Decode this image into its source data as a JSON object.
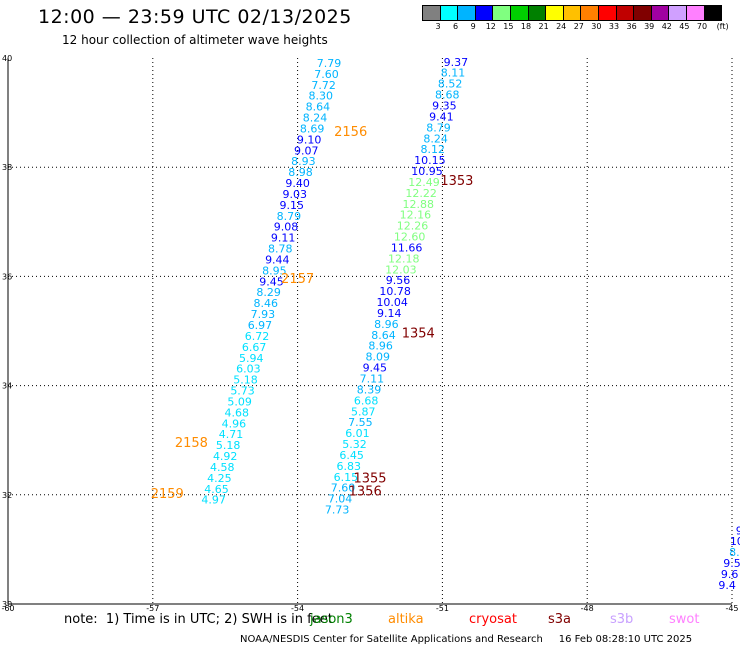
{
  "header": {
    "title": "12:00 — 23:59 UTC 02/13/2025",
    "subtitle": "12 hour collection of altimeter wave heights"
  },
  "legend": {
    "colors": [
      "#808080",
      "#00ffff",
      "#00b4ff",
      "#0000ff",
      "#80ff80",
      "#00d000",
      "#008000",
      "#ffff00",
      "#ffc000",
      "#ff8000",
      "#ff0000",
      "#c00000",
      "#800000",
      "#a000a0",
      "#d0a0ff",
      "#ff80ff",
      "#000000"
    ],
    "labels": [
      "3",
      "6",
      "9",
      "12",
      "15",
      "18",
      "21",
      "24",
      "27",
      "30",
      "33",
      "36",
      "39",
      "42",
      "45",
      "70",
      "(ft)"
    ]
  },
  "axes": {
    "x_ticks": [
      "-60",
      "-57",
      "-54",
      "-51",
      "-48",
      "-45"
    ],
    "y_ticks": [
      "40",
      "38",
      "36",
      "34",
      "32",
      "30"
    ]
  },
  "note": {
    "text": "note:  1) Time is in UTC; 2) SWH is in feet",
    "satellites": [
      {
        "name": "jason3",
        "color": "#008000"
      },
      {
        "name": "altika",
        "color": "#ff8c00"
      },
      {
        "name": "cryosat",
        "color": "#ff0000"
      },
      {
        "name": "s3a",
        "color": "#800000"
      },
      {
        "name": "s3b",
        "color": "#c8a0ff"
      },
      {
        "name": "swot",
        "color": "#ff80ff"
      }
    ]
  },
  "footer": "NOAA/NESDIS Center for Satellite Applications and Research     16 Feb 08:28:10 UTC 2025",
  "chart_data": {
    "type": "scatter",
    "xlim": [
      -60,
      -45
    ],
    "ylim": [
      30,
      40
    ],
    "tracks": [
      {
        "name": "track1",
        "points": [
          {
            "x": -53.35,
            "y": 39.91,
            "v": "7.79",
            "c": "#00b4ff"
          },
          {
            "x": -53.4,
            "y": 39.71,
            "v": "7.60",
            "c": "#00b4ff"
          },
          {
            "x": -53.46,
            "y": 39.51,
            "v": "7.72",
            "c": "#00b4ff"
          },
          {
            "x": -53.52,
            "y": 39.31,
            "v": "8.30",
            "c": "#00b4ff"
          },
          {
            "x": -53.58,
            "y": 39.11,
            "v": "8.64",
            "c": "#00b4ff"
          },
          {
            "x": -53.64,
            "y": 38.91,
            "v": "8.24",
            "c": "#00b4ff"
          },
          {
            "x": -53.7,
            "y": 38.71,
            "v": "8.69",
            "c": "#00b4ff"
          },
          {
            "x": -53.76,
            "y": 38.51,
            "v": "9.10",
            "c": "#0000ff"
          },
          {
            "x": -53.82,
            "y": 38.31,
            "v": "9.07",
            "c": "#0000ff"
          },
          {
            "x": -53.88,
            "y": 38.11,
            "v": "8.93",
            "c": "#00b4ff"
          },
          {
            "x": -53.94,
            "y": 37.91,
            "v": "8.98",
            "c": "#00b4ff"
          },
          {
            "x": -54.0,
            "y": 37.71,
            "v": "9.40",
            "c": "#0000ff"
          },
          {
            "x": -54.06,
            "y": 37.51,
            "v": "9.03",
            "c": "#0000ff"
          },
          {
            "x": -54.12,
            "y": 37.31,
            "v": "9.15",
            "c": "#0000ff"
          },
          {
            "x": -54.18,
            "y": 37.11,
            "v": "8.79",
            "c": "#00b4ff"
          },
          {
            "x": -54.24,
            "y": 36.91,
            "v": "9.08",
            "c": "#0000ff"
          },
          {
            "x": -54.3,
            "y": 36.71,
            "v": "9.11",
            "c": "#0000ff"
          },
          {
            "x": -54.36,
            "y": 36.51,
            "v": "8.78",
            "c": "#00b4ff"
          },
          {
            "x": -54.42,
            "y": 36.31,
            "v": "9.44",
            "c": "#0000ff"
          },
          {
            "x": -54.48,
            "y": 36.11,
            "v": "8.95",
            "c": "#00b4ff"
          },
          {
            "x": -54.54,
            "y": 35.91,
            "v": "9.45",
            "c": "#0000ff"
          },
          {
            "x": -54.6,
            "y": 35.71,
            "v": "8.29",
            "c": "#00b4ff"
          },
          {
            "x": -54.66,
            "y": 35.51,
            "v": "8.46",
            "c": "#00b4ff"
          },
          {
            "x": -54.72,
            "y": 35.31,
            "v": "7.93",
            "c": "#00b4ff"
          },
          {
            "x": -54.78,
            "y": 35.11,
            "v": "6.97",
            "c": "#00b4ff"
          },
          {
            "x": -54.84,
            "y": 34.91,
            "v": "6.72",
            "c": "#00e0ff"
          },
          {
            "x": -54.9,
            "y": 34.71,
            "v": "6.67",
            "c": "#00e0ff"
          },
          {
            "x": -54.96,
            "y": 34.51,
            "v": "5.94",
            "c": "#00e0ff"
          },
          {
            "x": -55.02,
            "y": 34.31,
            "v": "6.03",
            "c": "#00e0ff"
          },
          {
            "x": -55.08,
            "y": 34.11,
            "v": "5.18",
            "c": "#00e0ff"
          },
          {
            "x": -55.14,
            "y": 33.91,
            "v": "5.73",
            "c": "#00e0ff"
          },
          {
            "x": -55.2,
            "y": 33.71,
            "v": "5.09",
            "c": "#00e0ff"
          },
          {
            "x": -55.26,
            "y": 33.51,
            "v": "4.68",
            "c": "#00e0ff"
          },
          {
            "x": -55.32,
            "y": 33.31,
            "v": "4.96",
            "c": "#00e0ff"
          },
          {
            "x": -55.38,
            "y": 33.11,
            "v": "4.71",
            "c": "#00e0ff"
          },
          {
            "x": -55.44,
            "y": 32.91,
            "v": "5.18",
            "c": "#00e0ff"
          },
          {
            "x": -55.5,
            "y": 32.71,
            "v": "4.92",
            "c": "#00e0ff"
          },
          {
            "x": -55.56,
            "y": 32.51,
            "v": "4.58",
            "c": "#00e0ff"
          },
          {
            "x": -55.62,
            "y": 32.31,
            "v": "4.25",
            "c": "#00e0ff"
          },
          {
            "x": -55.68,
            "y": 32.11,
            "v": "4.65",
            "c": "#00e0ff"
          },
          {
            "x": -55.74,
            "y": 31.91,
            "v": "4.97",
            "c": "#00e0ff"
          }
        ]
      },
      {
        "name": "track2",
        "points": [
          {
            "x": -50.72,
            "y": 39.93,
            "v": "9.37",
            "c": "#0000ff"
          },
          {
            "x": -50.78,
            "y": 39.73,
            "v": "8.11",
            "c": "#00b4ff"
          },
          {
            "x": -50.84,
            "y": 39.53,
            "v": "8.52",
            "c": "#00b4ff"
          },
          {
            "x": -50.9,
            "y": 39.33,
            "v": "8.68",
            "c": "#00b4ff"
          },
          {
            "x": -50.96,
            "y": 39.13,
            "v": "9.35",
            "c": "#0000ff"
          },
          {
            "x": -51.02,
            "y": 38.93,
            "v": "9.41",
            "c": "#0000ff"
          },
          {
            "x": -51.08,
            "y": 38.73,
            "v": "8.79",
            "c": "#00b4ff"
          },
          {
            "x": -51.14,
            "y": 38.53,
            "v": "8.24",
            "c": "#00b4ff"
          },
          {
            "x": -51.2,
            "y": 38.33,
            "v": "8.12",
            "c": "#00b4ff"
          },
          {
            "x": -51.26,
            "y": 38.13,
            "v": "10.15",
            "c": "#0000ff"
          },
          {
            "x": -51.32,
            "y": 37.93,
            "v": "10.95",
            "c": "#0000ff"
          },
          {
            "x": -51.38,
            "y": 37.73,
            "v": "12.49",
            "c": "#80ff80"
          },
          {
            "x": -51.44,
            "y": 37.53,
            "v": "12.22",
            "c": "#80ff80"
          },
          {
            "x": -51.5,
            "y": 37.33,
            "v": "12.88",
            "c": "#80ff80"
          },
          {
            "x": -51.56,
            "y": 37.13,
            "v": "12.16",
            "c": "#80ff80"
          },
          {
            "x": -51.62,
            "y": 36.93,
            "v": "12.26",
            "c": "#80ff80"
          },
          {
            "x": -51.68,
            "y": 36.73,
            "v": "12.60",
            "c": "#80ff80"
          },
          {
            "x": -51.74,
            "y": 36.53,
            "v": "11.66",
            "c": "#0000ff"
          },
          {
            "x": -51.8,
            "y": 36.33,
            "v": "12.18",
            "c": "#80ff80"
          },
          {
            "x": -51.86,
            "y": 36.13,
            "v": "12.03",
            "c": "#80ff80"
          },
          {
            "x": -51.92,
            "y": 35.93,
            "v": "9.56",
            "c": "#0000ff"
          },
          {
            "x": -51.98,
            "y": 35.73,
            "v": "10.78",
            "c": "#0000ff"
          },
          {
            "x": -52.04,
            "y": 35.53,
            "v": "10.04",
            "c": "#0000ff"
          },
          {
            "x": -52.1,
            "y": 35.33,
            "v": "9.14",
            "c": "#0000ff"
          },
          {
            "x": -52.16,
            "y": 35.13,
            "v": "8.96",
            "c": "#00b4ff"
          },
          {
            "x": -52.22,
            "y": 34.93,
            "v": "8.64",
            "c": "#00b4ff"
          },
          {
            "x": -52.28,
            "y": 34.73,
            "v": "8.96",
            "c": "#00b4ff"
          },
          {
            "x": -52.34,
            "y": 34.53,
            "v": "8.09",
            "c": "#00b4ff"
          },
          {
            "x": -52.4,
            "y": 34.33,
            "v": "9.45",
            "c": "#0000ff"
          },
          {
            "x": -52.46,
            "y": 34.13,
            "v": "7.11",
            "c": "#00b4ff"
          },
          {
            "x": -52.52,
            "y": 33.93,
            "v": "8.39",
            "c": "#00b4ff"
          },
          {
            "x": -52.58,
            "y": 33.73,
            "v": "6.68",
            "c": "#00e0ff"
          },
          {
            "x": -52.64,
            "y": 33.53,
            "v": "5.87",
            "c": "#00e0ff"
          },
          {
            "x": -52.7,
            "y": 33.33,
            "v": "7.55",
            "c": "#00b4ff"
          },
          {
            "x": -52.76,
            "y": 33.13,
            "v": "6.01",
            "c": "#00e0ff"
          },
          {
            "x": -52.82,
            "y": 32.93,
            "v": "5.32",
            "c": "#00e0ff"
          },
          {
            "x": -52.88,
            "y": 32.73,
            "v": "6.45",
            "c": "#00e0ff"
          },
          {
            "x": -52.94,
            "y": 32.53,
            "v": "6.83",
            "c": "#00e0ff"
          },
          {
            "x": -53.0,
            "y": 32.33,
            "v": "6.15",
            "c": "#00e0ff"
          },
          {
            "x": -53.06,
            "y": 32.13,
            "v": "7.60",
            "c": "#00b4ff"
          },
          {
            "x": -53.12,
            "y": 31.93,
            "v": "7.04",
            "c": "#00b4ff"
          },
          {
            "x": -53.18,
            "y": 31.73,
            "v": "7.73",
            "c": "#00b4ff"
          }
        ]
      },
      {
        "name": "track3-edge",
        "points": [
          {
            "x": -44.85,
            "y": 31.35,
            "v": "9",
            "c": "#0000ff"
          },
          {
            "x": -44.9,
            "y": 31.15,
            "v": "10",
            "c": "#0000ff"
          },
          {
            "x": -44.95,
            "y": 30.95,
            "v": "8.",
            "c": "#00b4ff"
          },
          {
            "x": -45.0,
            "y": 30.75,
            "v": "9.5",
            "c": "#0000ff"
          },
          {
            "x": -45.05,
            "y": 30.55,
            "v": "9.6",
            "c": "#0000ff"
          },
          {
            "x": -45.1,
            "y": 30.35,
            "v": "9.4",
            "c": "#0000ff"
          }
        ]
      }
    ],
    "pass_labels": [
      {
        "text": "2156",
        "x": -52.9,
        "y": 38.66,
        "c": "#ff8c00"
      },
      {
        "text": "2157",
        "x": -54.0,
        "y": 35.97,
        "c": "#ff8c00"
      },
      {
        "text": "2158",
        "x": -56.2,
        "y": 32.97,
        "c": "#ff8c00"
      },
      {
        "text": "2159",
        "x": -56.7,
        "y": 32.03,
        "c": "#ff8c00"
      },
      {
        "text": "1353",
        "x": -50.7,
        "y": 37.77,
        "c": "#800000"
      },
      {
        "text": "1354",
        "x": -51.5,
        "y": 34.97,
        "c": "#800000"
      },
      {
        "text": "1355",
        "x": -52.5,
        "y": 32.32,
        "c": "#800000"
      },
      {
        "text": "1356",
        "x": -52.6,
        "y": 32.08,
        "c": "#800000"
      }
    ]
  }
}
